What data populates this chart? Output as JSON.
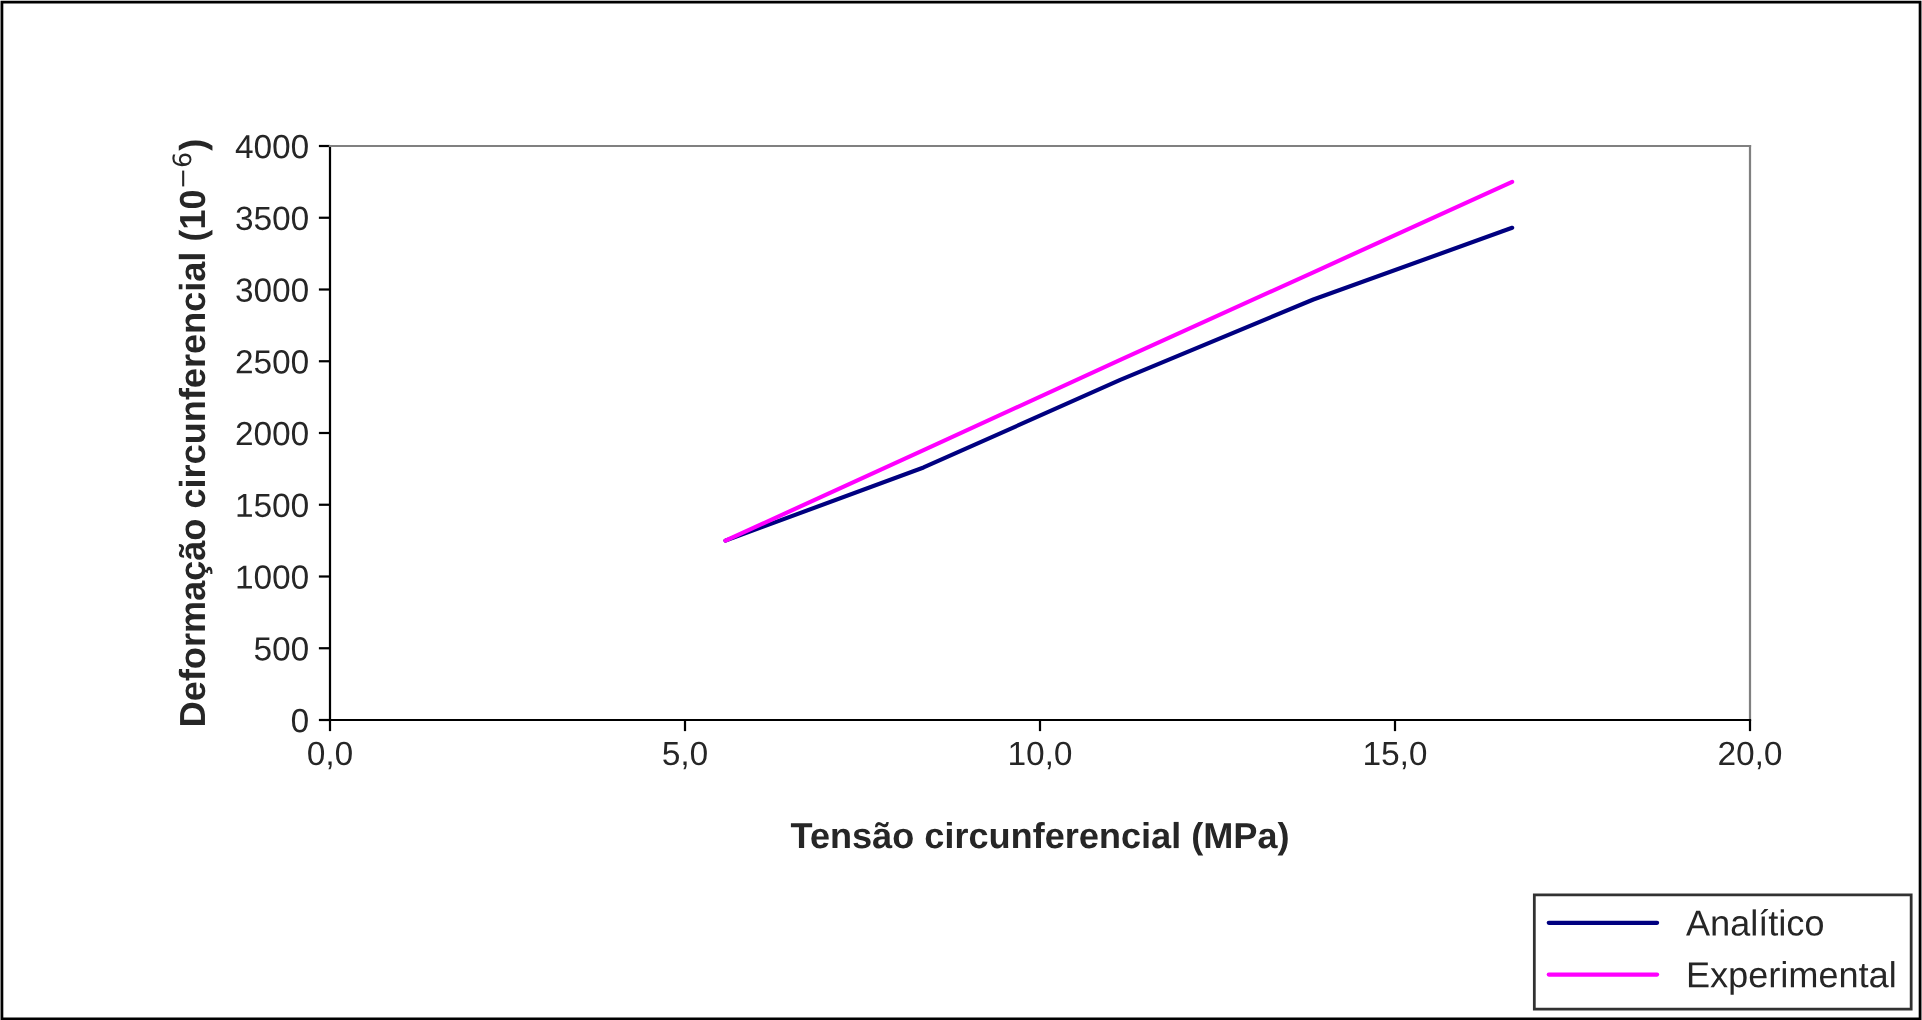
{
  "chart_data": {
    "type": "line",
    "xlabel": "Tensão circunferencial (MPa)",
    "ylabel": "Deformação circunferencial (10$^{−6}$)",
    "xlim": [
      0,
      20
    ],
    "xticks": [
      {
        "value": 0,
        "label": "0,0"
      },
      {
        "value": 5,
        "label": "5,0"
      },
      {
        "value": 10,
        "label": "10,0"
      },
      {
        "value": 15,
        "label": "15,0"
      },
      {
        "value": 20,
        "label": "20,0"
      }
    ],
    "ylim": [
      0,
      4000
    ],
    "yticks": [
      0,
      500,
      1000,
      1500,
      2000,
      2500,
      3000,
      3500,
      4000
    ],
    "grid": false,
    "legend": "bottom right",
    "marker": "none",
    "line_style": "solid",
    "series": [
      {
        "name": "Analítico",
        "color": "#000080",
        "x": [
          5.57,
          8.36,
          11.13,
          13.85,
          16.65
        ],
        "values": [
          1250,
          1760,
          2370,
          2930,
          3430
        ]
      },
      {
        "name": "Experimental",
        "color": "#ff00ff",
        "x": [
          5.57,
          8.36,
          11.13,
          13.85,
          16.65
        ],
        "values": [
          1250,
          1880,
          2510,
          3120,
          3750
        ]
      }
    ]
  }
}
